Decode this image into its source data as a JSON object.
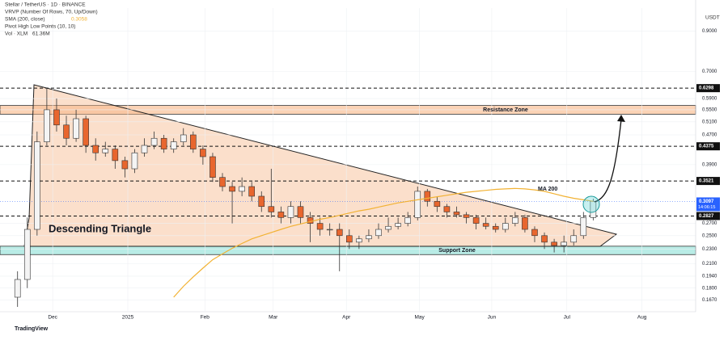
{
  "chart_data": {
    "type": "candlestick",
    "title": "Stellar / TetherUS · 1D · BINANCE",
    "indicators": [
      "VRVP (Number Of Rows, 70, Up/Down)",
      "SMA (200, close)",
      "Pivot High Low Points (10, 10)",
      "Vol · XLM"
    ],
    "sma_value": {
      "value": 0.3058,
      "label": "0.3058"
    },
    "volume_value": "61.36M",
    "currency": "USDT",
    "brand": "TradingView",
    "log_scale": true,
    "up_color": "#f4f4f4",
    "down_color": "#e8662e",
    "sma_color": "#f2b233",
    "open": [
      0.17,
      0.19,
      0.26,
      0.45,
      0.55,
      0.5,
      0.46,
      0.52,
      0.44,
      0.42,
      0.43,
      0.4,
      0.38,
      0.42,
      0.44,
      0.46,
      0.43,
      0.45,
      0.47,
      0.43,
      0.41,
      0.36,
      0.34,
      0.33,
      0.34,
      0.32,
      0.3,
      0.29,
      0.28,
      0.3,
      0.28,
      0.27,
      0.26,
      0.26,
      0.25,
      0.24,
      0.245,
      0.25,
      0.26,
      0.265,
      0.27,
      0.28,
      0.33,
      0.31,
      0.3,
      0.29,
      0.285,
      0.28,
      0.27,
      0.265,
      0.26,
      0.27,
      0.28,
      0.26,
      0.25,
      0.24,
      0.235,
      0.24,
      0.25,
      0.28
    ],
    "high": [
      0.2,
      0.28,
      0.48,
      0.63,
      0.59,
      0.53,
      0.55,
      0.53,
      0.46,
      0.45,
      0.44,
      0.41,
      0.43,
      0.46,
      0.48,
      0.47,
      0.46,
      0.49,
      0.48,
      0.44,
      0.42,
      0.37,
      0.35,
      0.36,
      0.35,
      0.33,
      0.38,
      0.3,
      0.31,
      0.31,
      0.29,
      0.28,
      0.27,
      0.27,
      0.26,
      0.25,
      0.26,
      0.27,
      0.28,
      0.28,
      0.29,
      0.34,
      0.335,
      0.32,
      0.305,
      0.3,
      0.29,
      0.285,
      0.28,
      0.27,
      0.28,
      0.29,
      0.285,
      0.265,
      0.255,
      0.245,
      0.25,
      0.26,
      0.29,
      0.315
    ],
    "low": [
      0.16,
      0.18,
      0.25,
      0.44,
      0.48,
      0.44,
      0.45,
      0.42,
      0.4,
      0.41,
      0.38,
      0.36,
      0.37,
      0.41,
      0.43,
      0.42,
      0.42,
      0.44,
      0.42,
      0.39,
      0.35,
      0.33,
      0.27,
      0.32,
      0.31,
      0.29,
      0.28,
      0.27,
      0.27,
      0.27,
      0.24,
      0.25,
      0.25,
      0.2,
      0.23,
      0.23,
      0.24,
      0.245,
      0.255,
      0.26,
      0.265,
      0.275,
      0.3,
      0.29,
      0.28,
      0.28,
      0.27,
      0.26,
      0.26,
      0.255,
      0.255,
      0.265,
      0.255,
      0.24,
      0.23,
      0.225,
      0.225,
      0.235,
      0.245,
      0.275
    ],
    "close": [
      0.19,
      0.26,
      0.45,
      0.55,
      0.5,
      0.46,
      0.52,
      0.44,
      0.42,
      0.43,
      0.4,
      0.38,
      0.42,
      0.44,
      0.46,
      0.43,
      0.45,
      0.47,
      0.43,
      0.41,
      0.36,
      0.34,
      0.33,
      0.34,
      0.32,
      0.3,
      0.29,
      0.28,
      0.3,
      0.28,
      0.27,
      0.26,
      0.26,
      0.25,
      0.24,
      0.245,
      0.25,
      0.26,
      0.265,
      0.27,
      0.28,
      0.33,
      0.31,
      0.3,
      0.29,
      0.285,
      0.28,
      0.27,
      0.265,
      0.26,
      0.27,
      0.28,
      0.26,
      0.25,
      0.24,
      0.235,
      0.24,
      0.25,
      0.28,
      0.31
    ],
    "sma": [
      null,
      null,
      null,
      null,
      null,
      null,
      null,
      null,
      null,
      null,
      null,
      null,
      null,
      null,
      null,
      null,
      0.17,
      0.182,
      0.193,
      0.204,
      0.215,
      0.223,
      0.231,
      0.238,
      0.245,
      0.25,
      0.255,
      0.26,
      0.265,
      0.269,
      0.273,
      0.277,
      0.28,
      0.284,
      0.288,
      0.292,
      0.295,
      0.299,
      0.303,
      0.307,
      0.31,
      0.313,
      0.316,
      0.319,
      0.322,
      0.325,
      0.328,
      0.33,
      0.332,
      0.334,
      0.335,
      0.336,
      0.335,
      0.333,
      0.33,
      0.325,
      0.32,
      0.316,
      0.313,
      0.31
    ],
    "xlim": [
      -1.8,
      69.5
    ],
    "xticks": [
      {
        "value": 3.6,
        "label": "Dec"
      },
      {
        "value": 11.3,
        "label": "2025"
      },
      {
        "value": 19.2,
        "label": "Feb"
      },
      {
        "value": 26.2,
        "label": "Mar"
      },
      {
        "value": 33.7,
        "label": "Apr"
      },
      {
        "value": 41.2,
        "label": "May"
      },
      {
        "value": 48.6,
        "label": "Jun"
      },
      {
        "value": 56.3,
        "label": "Jul"
      },
      {
        "value": 64.0,
        "label": "Aug"
      }
    ],
    "ylim": [
      0.156,
      1.04
    ],
    "yticks": [
      {
        "value": 0.9,
        "label": "0.9000"
      },
      {
        "value": 0.7,
        "label": "0.7000"
      },
      {
        "value": 0.59,
        "label": "0.5900"
      },
      {
        "value": 0.55,
        "label": "0.5500"
      },
      {
        "value": 0.51,
        "label": "0.5100"
      },
      {
        "value": 0.47,
        "label": "0.4700"
      },
      {
        "value": 0.39,
        "label": "0.3900"
      },
      {
        "value": 0.27,
        "label": "0.2700"
      },
      {
        "value": 0.25,
        "label": "0.2500"
      },
      {
        "value": 0.23,
        "label": "0.2300"
      },
      {
        "value": 0.21,
        "label": "0.2100"
      },
      {
        "value": 0.194,
        "label": "0.1940"
      },
      {
        "value": 0.18,
        "label": "0.1800"
      },
      {
        "value": 0.167,
        "label": "0.1670"
      }
    ],
    "levels": [
      {
        "value": 0.6298,
        "label": "0.6298"
      },
      {
        "value": 0.4375,
        "label": "0.4375"
      },
      {
        "value": 0.3521,
        "label": "0.3521"
      },
      {
        "value": 0.2827,
        "label": "0.2827"
      }
    ],
    "last_price": {
      "value": 0.3097,
      "label": "0.3097"
    },
    "countdown": "14:06:15",
    "resistance_zone": {
      "label": "Resistance Zone",
      "range": [
        0.535,
        0.565
      ]
    },
    "support_zone": {
      "label": "Support Zone",
      "range": [
        0.222,
        0.234
      ]
    },
    "pattern_label": "Descending Triangle",
    "ma_label": "MA 200"
  }
}
